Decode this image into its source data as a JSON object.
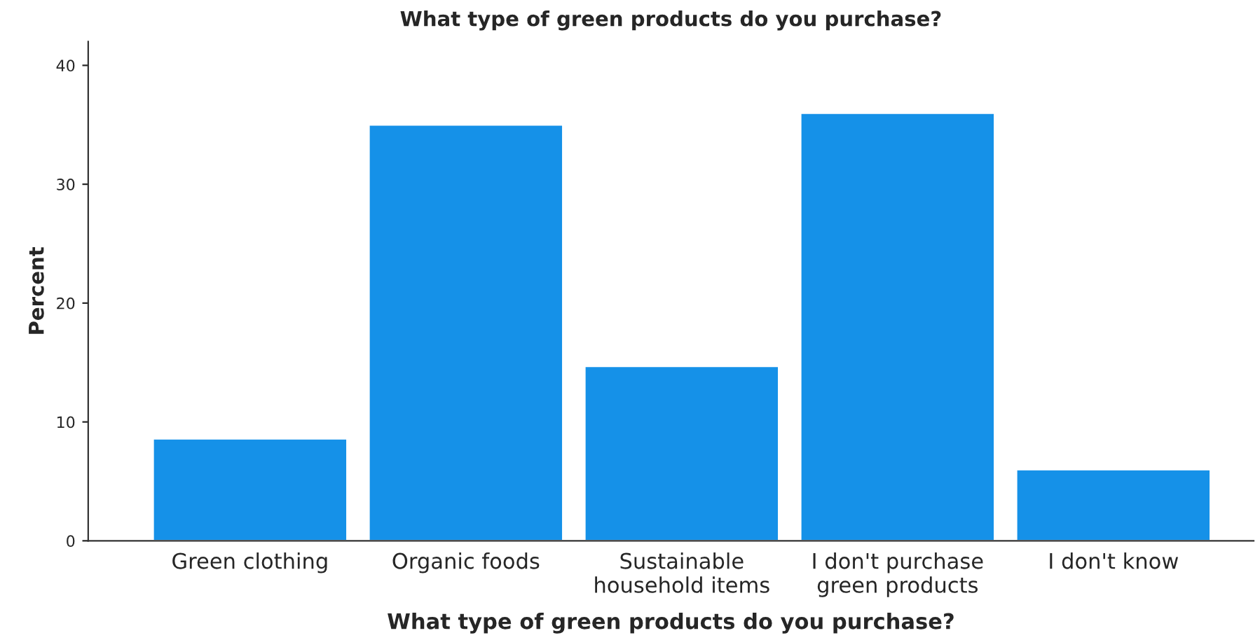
{
  "chart_data": {
    "type": "bar",
    "title": "What type of green products do you purchase?",
    "xlabel": "What type of green products do you purchase?",
    "ylabel": "Percent",
    "categories": [
      "Green clothing",
      "Organic foods",
      "Sustainable\nhousehold items",
      "I don't purchase\ngreen products",
      "I don't know"
    ],
    "values": [
      8.6,
      35.0,
      14.7,
      36.0,
      6.0
    ],
    "color": "#1591e8",
    "ylim": [
      0,
      42
    ],
    "yticks": [
      0,
      10,
      20,
      30,
      40
    ],
    "grid": false,
    "legend": false
  }
}
